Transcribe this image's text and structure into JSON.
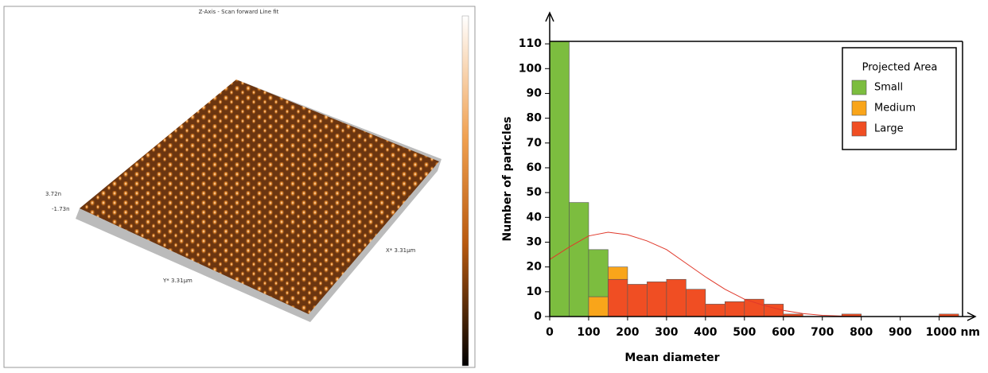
{
  "afm_image": {
    "title": "Z-Axis - Scan forward   Line fit",
    "z_max": "3.72n",
    "z_min": "-1.73n",
    "x_size": "X* 3.31μm",
    "y_size": "Y* 3.31μm"
  },
  "chart_data": {
    "type": "histogram",
    "x_label": "Mean diameter",
    "y_label": "Number of particles",
    "legend_title": "Projected Area",
    "legend": "upper right",
    "bins": [
      0,
      50,
      100,
      150,
      200,
      250,
      300,
      350,
      400,
      450,
      500,
      550,
      600,
      650,
      700,
      750,
      800,
      850,
      900,
      950,
      1000,
      1050
    ],
    "series": [
      {
        "name": "Small",
        "color": "#7cbd3f",
        "values": [
          111,
          46,
          19,
          0,
          0,
          0,
          0,
          0,
          0,
          0,
          0,
          0,
          0,
          0,
          0,
          0,
          0,
          0,
          0,
          0,
          0
        ]
      },
      {
        "name": "Medium",
        "color": "#f9a51a",
        "values": [
          0,
          0,
          8,
          5,
          0,
          0,
          0,
          0,
          0,
          0,
          0,
          0,
          0,
          0,
          0,
          0,
          0,
          0,
          0,
          0,
          0
        ]
      },
      {
        "name": "Large",
        "color": "#f04e23",
        "values": [
          0,
          0,
          0,
          15,
          13,
          14,
          15,
          11,
          5,
          6,
          7,
          5,
          1,
          0,
          0,
          1,
          0,
          0,
          0,
          0,
          1
        ]
      }
    ],
    "fit": {
      "color": "#e0392b",
      "x": [
        0,
        50,
        100,
        150,
        200,
        250,
        300,
        350,
        400,
        450,
        500,
        550,
        600,
        650,
        700,
        750,
        800
      ],
      "values": [
        23,
        28,
        32.5,
        34,
        33,
        30.5,
        27,
        21.5,
        16,
        11,
        7,
        4.5,
        2.5,
        1.2,
        0.5,
        0.2,
        0.1
      ]
    },
    "xlim": [
      0,
      1060
    ],
    "ylim": [
      0,
      111
    ],
    "xticks": [
      0,
      100,
      200,
      300,
      400,
      500,
      600,
      700,
      800,
      900,
      {
        "value": 1000,
        "label": "1000 nm"
      }
    ],
    "yticks": [
      0,
      10,
      20,
      30,
      40,
      50,
      60,
      70,
      80,
      90,
      100,
      110
    ]
  }
}
